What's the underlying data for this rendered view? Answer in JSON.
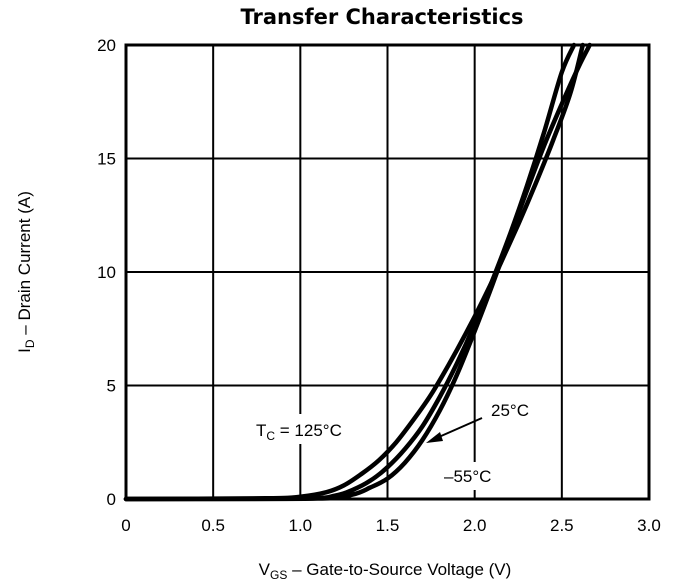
{
  "chart_data": {
    "type": "line",
    "title": "Transfer Characteristics",
    "xlabel": {
      "main": "V",
      "sub": "GS",
      "rest": " –  Gate-to-Source Voltage (V)"
    },
    "ylabel": {
      "main": "I",
      "sub": "D",
      "rest": " –  Drain Current (A)"
    },
    "xlim": [
      0,
      3.0
    ],
    "ylim": [
      0,
      20
    ],
    "xticks": [
      0,
      0.5,
      1.0,
      1.5,
      2.0,
      2.5,
      3.0
    ],
    "xtick_labels": [
      "0",
      "0.5",
      "1.0",
      "1.5",
      "2.0",
      "2.5",
      "3.0"
    ],
    "yticks": [
      0,
      5,
      10,
      15,
      20
    ],
    "ytick_labels": [
      "0",
      "5",
      "10",
      "15",
      "20"
    ],
    "grid": true,
    "series": [
      {
        "name": "125°C",
        "x": [
          0,
          0.8,
          1.0,
          1.15,
          1.25,
          1.35,
          1.45,
          1.55,
          1.65,
          1.75,
          1.85,
          1.95,
          2.05,
          2.15,
          2.25,
          2.35,
          2.45,
          2.55,
          2.62
        ],
        "y": [
          0,
          0.03,
          0.1,
          0.3,
          0.6,
          1.1,
          1.7,
          2.5,
          3.5,
          4.6,
          5.9,
          7.3,
          8.8,
          10.4,
          12.1,
          13.9,
          15.8,
          17.9,
          20
        ]
      },
      {
        "name": "25°C",
        "x": [
          0,
          1.0,
          1.2,
          1.3,
          1.4,
          1.5,
          1.6,
          1.7,
          1.8,
          1.9,
          2.0,
          2.1,
          2.2,
          2.3,
          2.4,
          2.5,
          2.57
        ],
        "y": [
          0,
          0.02,
          0.15,
          0.4,
          0.8,
          1.4,
          2.2,
          3.2,
          4.5,
          6.0,
          7.7,
          9.6,
          11.6,
          13.8,
          16.2,
          18.8,
          20
        ]
      },
      {
        "name": "-55°C",
        "x": [
          0,
          1.1,
          1.3,
          1.4,
          1.5,
          1.6,
          1.7,
          1.8,
          1.9,
          2.0,
          2.1,
          2.2,
          2.3,
          2.4,
          2.5,
          2.6,
          2.66
        ],
        "y": [
          0,
          0.02,
          0.2,
          0.5,
          0.9,
          1.6,
          2.6,
          3.9,
          5.5,
          7.4,
          9.4,
          11.5,
          13.6,
          15.6,
          17.4,
          19.1,
          20
        ]
      }
    ],
    "annotations": [
      {
        "main": "T",
        "sub": "C",
        "rest": " = 125°C"
      },
      {
        "text": "25°C"
      },
      {
        "text": "–55°C"
      }
    ]
  }
}
